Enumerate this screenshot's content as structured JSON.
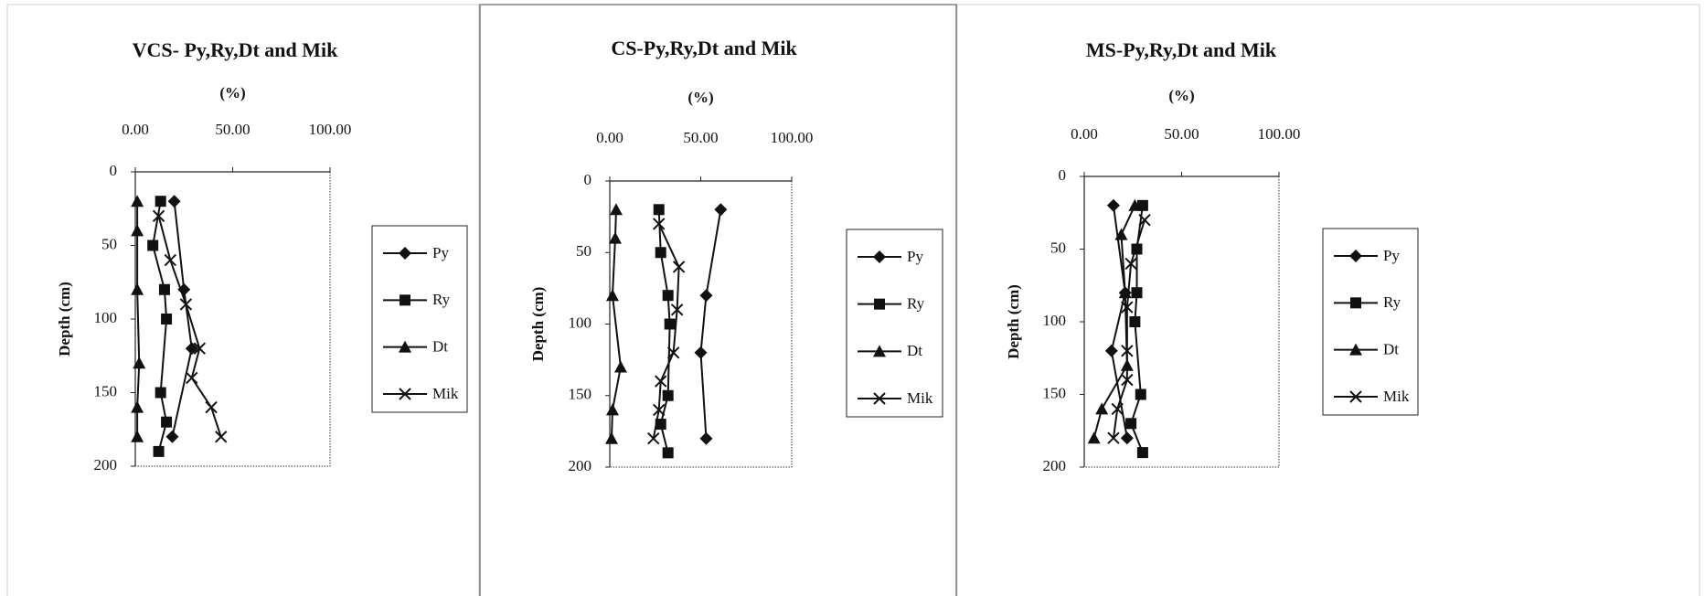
{
  "chart_data": [
    {
      "type": "line",
      "title": "VCS- Py,Ry,Dt and Mik",
      "xlabel": "(%)",
      "ylabel": "Depth (cm)",
      "xlim": [
        0,
        100
      ],
      "xticks": [
        {
          "value": 0,
          "label": "0.00"
        },
        {
          "value": 50,
          "label": "50.00"
        },
        {
          "value": 100,
          "label": "100.00"
        }
      ],
      "ylim": [
        0,
        200
      ],
      "yticks": [
        0,
        50,
        100,
        150,
        200
      ],
      "y_reversed": true,
      "series": [
        {
          "name": "Py",
          "color": "#111111",
          "marker": "diamond",
          "depth": [
            20,
            80,
            120,
            180
          ],
          "values": [
            20,
            25,
            29,
            19
          ]
        },
        {
          "name": "Ry",
          "color": "#111111",
          "marker": "square",
          "depth": [
            20,
            50,
            80,
            100,
            150,
            170,
            190
          ],
          "values": [
            13,
            9,
            15,
            16,
            13,
            16,
            12
          ]
        },
        {
          "name": "Dt",
          "color": "#111111",
          "marker": "triangle",
          "depth": [
            20,
            40,
            80,
            130,
            160,
            180
          ],
          "values": [
            1,
            1,
            1,
            2,
            1,
            1
          ]
        },
        {
          "name": "Mik",
          "color": "#111111",
          "marker": "x",
          "depth": [
            30,
            60,
            90,
            120,
            140,
            160,
            180
          ],
          "values": [
            12,
            18,
            26,
            33,
            29,
            39,
            44
          ]
        }
      ]
    },
    {
      "type": "line",
      "title": "CS-Py,Ry,Dt and Mik",
      "xlabel": "(%)",
      "ylabel": "Depth (cm)",
      "xlim": [
        0,
        100
      ],
      "xticks": [
        {
          "value": 0,
          "label": "0.00"
        },
        {
          "value": 50,
          "label": "50.00"
        },
        {
          "value": 100,
          "label": "100.00"
        }
      ],
      "ylim": [
        0,
        200
      ],
      "yticks": [
        0,
        50,
        100,
        150,
        200
      ],
      "y_reversed": true,
      "series": [
        {
          "name": "Py",
          "color": "#111111",
          "marker": "diamond",
          "depth": [
            20,
            80,
            120,
            180
          ],
          "values": [
            61,
            53,
            50,
            53
          ]
        },
        {
          "name": "Ry",
          "color": "#111111",
          "marker": "square",
          "depth": [
            20,
            50,
            80,
            100,
            150,
            170,
            190
          ],
          "values": [
            27,
            28,
            32,
            33,
            32,
            28,
            32
          ]
        },
        {
          "name": "Dt",
          "color": "#111111",
          "marker": "triangle",
          "depth": [
            20,
            40,
            80,
            130,
            160,
            180
          ],
          "values": [
            3.5,
            3,
            1.5,
            6,
            1.5,
            1
          ]
        },
        {
          "name": "Mik",
          "color": "#111111",
          "marker": "x",
          "depth": [
            30,
            60,
            90,
            120,
            140,
            160,
            180
          ],
          "values": [
            27,
            38,
            37,
            35,
            28,
            27,
            24
          ]
        }
      ]
    },
    {
      "type": "line",
      "title": "MS-Py,Ry,Dt and Mik",
      "xlabel": "(%)",
      "ylabel": "Depth (cm)",
      "xlim": [
        0,
        100
      ],
      "xticks": [
        {
          "value": 0,
          "label": "0.00"
        },
        {
          "value": 50,
          "label": "50.00"
        },
        {
          "value": 100,
          "label": "100.00"
        }
      ],
      "ylim": [
        0,
        200
      ],
      "yticks": [
        0,
        50,
        100,
        150,
        200
      ],
      "y_reversed": true,
      "series": [
        {
          "name": "Py",
          "color": "#111111",
          "marker": "diamond",
          "depth": [
            20,
            80,
            120,
            180
          ],
          "values": [
            15,
            21,
            14,
            22
          ]
        },
        {
          "name": "Ry",
          "color": "#111111",
          "marker": "square",
          "depth": [
            20,
            50,
            80,
            100,
            150,
            170,
            190
          ],
          "values": [
            30,
            27,
            27,
            26,
            29,
            24,
            30
          ]
        },
        {
          "name": "Dt",
          "color": "#111111",
          "marker": "triangle",
          "depth": [
            20,
            40,
            80,
            130,
            160,
            180
          ],
          "values": [
            26,
            19,
            21,
            22,
            9,
            5
          ]
        },
        {
          "name": "Mik",
          "color": "#111111",
          "marker": "x",
          "depth": [
            30,
            60,
            90,
            120,
            140,
            160,
            180
          ],
          "values": [
            31,
            24,
            22,
            22,
            22,
            17,
            15
          ]
        }
      ]
    }
  ]
}
